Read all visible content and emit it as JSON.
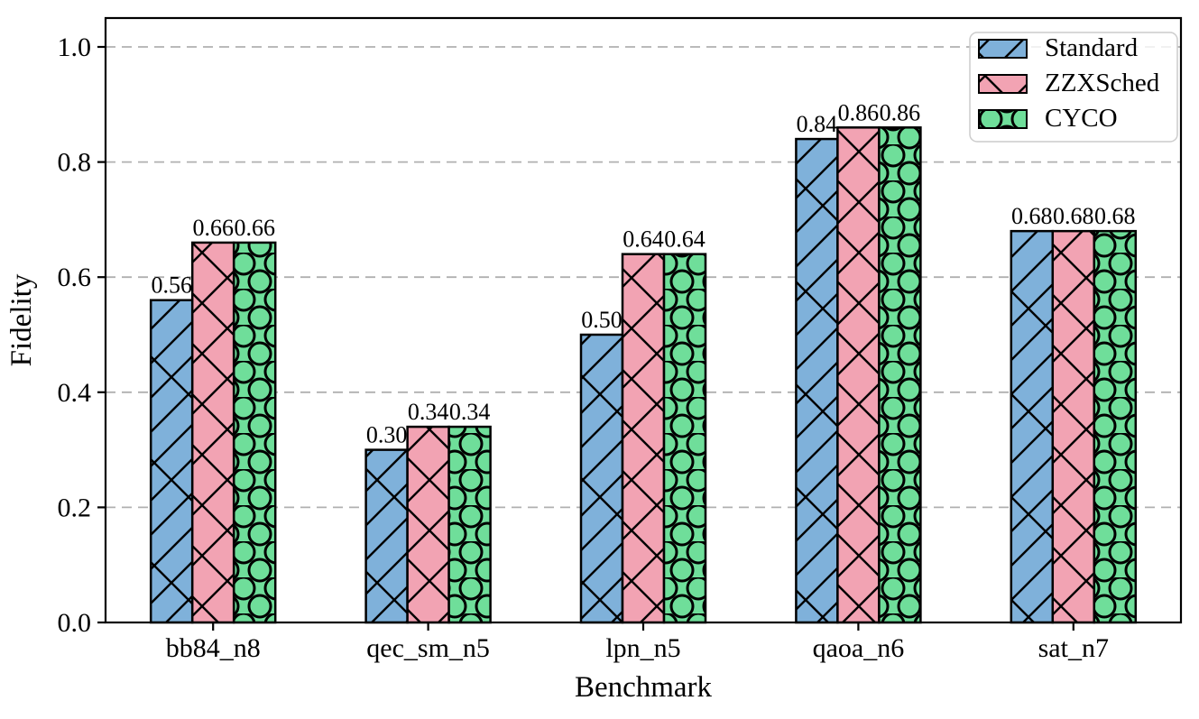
{
  "figure": {
    "background": "#ffffff"
  },
  "chart_data": {
    "type": "bar",
    "title": "",
    "xlabel": "Benchmark",
    "ylabel": "Fidelity",
    "categories": [
      "bb84_n8",
      "qec_sm_n5",
      "lpn_n5",
      "qaoa_n6",
      "sat_n7"
    ],
    "series": [
      {
        "name": "Standard",
        "color": "#7FB1DA",
        "hatch": "/\\",
        "values": [
          0.56,
          0.3,
          0.5,
          0.84,
          0.68
        ]
      },
      {
        "name": "ZZXSched",
        "color": "#F2A3B3",
        "hatch": "x",
        "values": [
          0.66,
          0.34,
          0.64,
          0.86,
          0.68
        ]
      },
      {
        "name": "CYCO",
        "color": "#6FDE9A",
        "hatch": "O",
        "values": [
          0.66,
          0.34,
          0.64,
          0.86,
          0.68
        ]
      }
    ],
    "bar_value_labels": [
      [
        "0.56",
        "0.30",
        "0.50",
        "0.84",
        "0.68"
      ],
      [
        "0.66",
        "0.34",
        "0.64",
        "0.86",
        "0.68"
      ],
      [
        "0.66",
        "0.34",
        "0.64",
        "0.86",
        "0.68"
      ]
    ],
    "ylim": [
      0.0,
      1.05
    ],
    "yticks": [
      "0.0",
      "0.2",
      "0.4",
      "0.6",
      "0.8",
      "1.0"
    ],
    "grid": true,
    "grid_color": "#b0b0b0",
    "edge_color": "#000000",
    "legend": {
      "position": "upper right",
      "entries": [
        "Standard",
        "ZZXSched",
        "CYCO"
      ]
    }
  }
}
